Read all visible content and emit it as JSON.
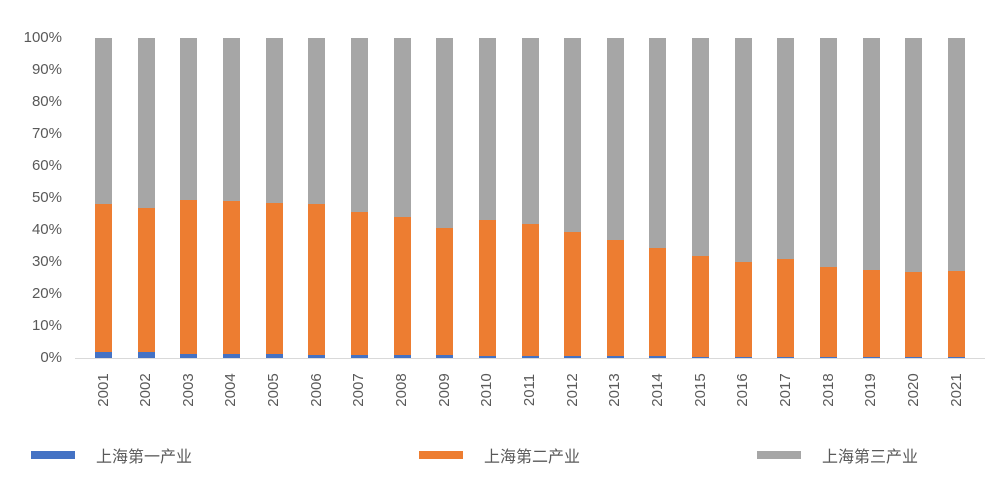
{
  "chart_data": {
    "type": "bar",
    "variant": "stacked-100-percent-column",
    "title": "",
    "xlabel": "",
    "ylabel": "",
    "ylim": [
      0,
      100
    ],
    "grid": "off",
    "legend_position": "bottom",
    "y_ticks": [
      "0%",
      "10%",
      "20%",
      "30%",
      "40%",
      "50%",
      "60%",
      "70%",
      "80%",
      "90%",
      "100%"
    ],
    "categories": [
      "2001",
      "2002",
      "2003",
      "2004",
      "2005",
      "2006",
      "2007",
      "2008",
      "2009",
      "2010",
      "2011",
      "2012",
      "2013",
      "2014",
      "2015",
      "2016",
      "2017",
      "2018",
      "2019",
      "2020",
      "2021"
    ],
    "series": [
      {
        "name": "上海第一产业",
        "color": "#4472c4",
        "values": [
          1.9,
          1.9,
          1.3,
          1.2,
          1.1,
          1.0,
          0.9,
          0.8,
          0.8,
          0.7,
          0.6,
          0.6,
          0.5,
          0.5,
          0.4,
          0.4,
          0.3,
          0.3,
          0.3,
          0.3,
          0.3
        ]
      },
      {
        "name": "上海第二产业",
        "color": "#ed7d31",
        "values": [
          46.1,
          45.1,
          48.2,
          47.8,
          47.4,
          47.0,
          44.6,
          43.2,
          39.7,
          42.3,
          41.4,
          38.9,
          36.5,
          34.0,
          31.6,
          29.6,
          30.7,
          28.2,
          27.2,
          26.7,
          27.0
        ]
      },
      {
        "name": "上海第三产业",
        "color": "#a6a6a6",
        "values": [
          52.0,
          53.0,
          50.5,
          51.0,
          51.5,
          52.0,
          54.5,
          56.0,
          59.5,
          57.0,
          58.0,
          60.5,
          63.0,
          65.5,
          68.0,
          70.0,
          69.0,
          71.5,
          72.5,
          73.0,
          72.7
        ]
      }
    ]
  },
  "colors": {
    "axis_text": "#595959",
    "baseline": "#d9d9d9",
    "background": "#ffffff"
  }
}
